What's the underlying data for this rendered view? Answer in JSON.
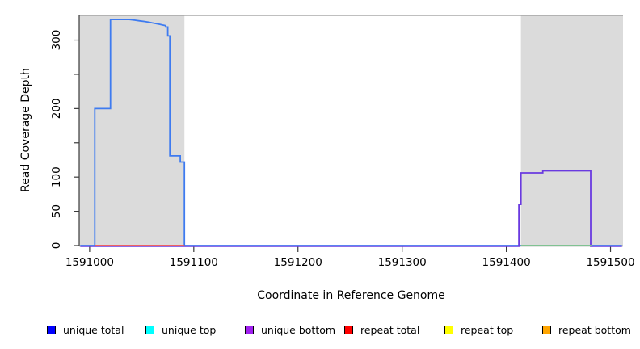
{
  "chart_data": {
    "type": "line",
    "title": "",
    "xlabel": "Coordinate in Reference Genome",
    "ylabel": "Read Coverage Depth",
    "xlim": [
      1590990,
      1591512
    ],
    "ylim": [
      0,
      336
    ],
    "grid": false,
    "x_ticks": [
      1591000,
      1591100,
      1591200,
      1591300,
      1591400,
      1591500
    ],
    "x_tick_labels": [
      "1591000",
      "1591100",
      "1591200",
      "1591300",
      "1591400",
      "1591500"
    ],
    "y_ticks": [
      0,
      50,
      100,
      150,
      200,
      250,
      300
    ],
    "y_tick_labels": [
      "0",
      "50",
      "100",
      "",
      "200",
      "",
      "300"
    ],
    "regions": [
      {
        "name": "gray-block-left",
        "x0": 1590990,
        "x1": 1591091,
        "color": "#DBDBDB"
      },
      {
        "name": "gray-block-right",
        "x0": 1591414,
        "x1": 1591512,
        "color": "#DBDBDB"
      }
    ],
    "series": [
      {
        "name": "unique total",
        "color": "#3E7BF0",
        "points": [
          [
            1590991,
            0
          ],
          [
            1591005,
            0
          ],
          [
            1591005,
            200
          ],
          [
            1591020,
            200
          ],
          [
            1591020,
            330
          ],
          [
            1591038,
            330
          ],
          [
            1591043,
            329
          ],
          [
            1591048,
            328
          ],
          [
            1591053,
            327
          ],
          [
            1591057,
            326
          ],
          [
            1591060,
            325
          ],
          [
            1591064,
            324
          ],
          [
            1591067,
            323
          ],
          [
            1591070,
            322
          ],
          [
            1591073,
            321
          ],
          [
            1591073,
            319
          ],
          [
            1591075,
            319
          ],
          [
            1591075,
            306
          ],
          [
            1591077,
            306
          ],
          [
            1591077,
            131
          ],
          [
            1591087,
            131
          ],
          [
            1591087,
            122
          ],
          [
            1591091,
            122
          ],
          [
            1591091,
            0
          ],
          [
            1591511,
            0
          ]
        ]
      },
      {
        "name": "unique bottom",
        "color": "#6A3AE0",
        "points": [
          [
            1590991,
            0
          ],
          [
            1591412,
            0
          ],
          [
            1591412,
            61
          ],
          [
            1591414,
            61
          ],
          [
            1591414,
            107
          ],
          [
            1591435,
            107
          ],
          [
            1591435,
            110
          ],
          [
            1591481,
            110
          ],
          [
            1591481,
            0
          ],
          [
            1591511,
            0
          ]
        ]
      },
      {
        "name": "repeat total",
        "color": "#F25050",
        "points": [
          [
            1591005,
            0
          ],
          [
            1591091,
            0
          ]
        ]
      },
      {
        "name": "green baseline",
        "color": "#85C985",
        "points": [
          [
            1591414,
            0
          ],
          [
            1591482,
            0
          ]
        ]
      }
    ],
    "legend_position": "bottom",
    "legend": [
      {
        "label": "unique total",
        "color": "#0000FF"
      },
      {
        "label": "unique top",
        "color": "#00FFFF"
      },
      {
        "label": "unique bottom",
        "color": "#A020F0"
      },
      {
        "label": "repeat total",
        "color": "#FF0000"
      },
      {
        "label": "repeat top",
        "color": "#FFFF00"
      },
      {
        "label": "repeat bottom",
        "color": "#FFA500"
      }
    ]
  },
  "layout_colors": {
    "axis": "#3a3a3a",
    "top_border": "#999999",
    "tick_label": "#000000"
  }
}
